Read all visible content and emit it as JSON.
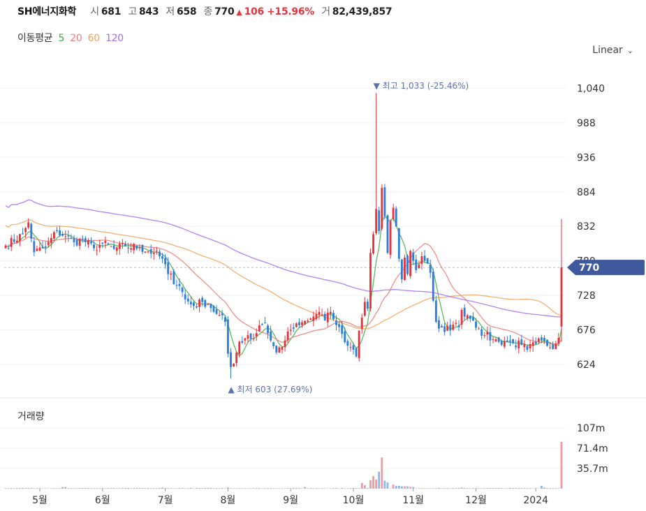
{
  "header": {
    "name": "SH에너지화학",
    "open_label": "시",
    "open": "681",
    "high_label": "고",
    "high": "843",
    "low_label": "저",
    "low": "658",
    "close_label": "종",
    "close": "770",
    "change": "106",
    "change_pct": "+15.96%",
    "volume_label": "거",
    "volume": "82,439,857"
  },
  "ma_legend": {
    "title": "이동평균",
    "items": [
      {
        "label": "5",
        "color": "#3fae3f"
      },
      {
        "label": "20",
        "color": "#f07a7a"
      },
      {
        "label": "60",
        "color": "#f0a35a"
      },
      {
        "label": "120",
        "color": "#a36df0"
      }
    ]
  },
  "scale_mode": "Linear",
  "annotations": {
    "high": {
      "label": "최고",
      "value": "1,033 (-25.46%)"
    },
    "low": {
      "label": "최저",
      "value": "603 (27.69%)"
    },
    "current": "770"
  },
  "volume_panel": {
    "title": "거래량"
  },
  "colors": {
    "up": "#e8323c",
    "down": "#2f7fd8",
    "grid": "#eef0f3",
    "current_badge": "#3f5a9c",
    "annotation": "#5a72b0"
  },
  "chart_data": {
    "type": "candlestick",
    "price_axis": {
      "ticks": [
        "1,040",
        "988",
        "936",
        "884",
        "832",
        "780",
        "728",
        "676",
        "624"
      ],
      "tick_values": [
        1040,
        988,
        936,
        884,
        832,
        780,
        728,
        676,
        624
      ],
      "range": [
        584,
        1072
      ]
    },
    "volume_axis": {
      "ticks": [
        "107m",
        "71.4m",
        "35.7m"
      ],
      "tick_values": [
        107,
        71.4,
        35.7
      ],
      "unit": "m",
      "range": [
        0,
        150
      ]
    },
    "x_labels": [
      "5월",
      "6월",
      "7월",
      "8월",
      "9월",
      "10월",
      "11월",
      "12월",
      "2024"
    ],
    "x_label_index": [
      12,
      34,
      56,
      78,
      100,
      122,
      143,
      165,
      186
    ],
    "last": {
      "open": 681,
      "high": 843,
      "low": 658,
      "close": 770,
      "volume": 82.44
    },
    "ohlc_anchors": [
      [
        0,
        803
      ],
      [
        6,
        820
      ],
      [
        8,
        838
      ],
      [
        10,
        793
      ],
      [
        14,
        800
      ],
      [
        18,
        825
      ],
      [
        21,
        817
      ],
      [
        24,
        808
      ],
      [
        27,
        812
      ],
      [
        31,
        799
      ],
      [
        34,
        806
      ],
      [
        38,
        798
      ],
      [
        42,
        802
      ],
      [
        47,
        800
      ],
      [
        52,
        792
      ],
      [
        55,
        783
      ],
      [
        57,
        760
      ],
      [
        61,
        742
      ],
      [
        63,
        722
      ],
      [
        66,
        712
      ],
      [
        69,
        718
      ],
      [
        71,
        716
      ],
      [
        74,
        700
      ],
      [
        77,
        688
      ],
      [
        78,
        640
      ],
      [
        79,
        620
      ],
      [
        80,
        625
      ],
      [
        82,
        658
      ],
      [
        85,
        668
      ],
      [
        87,
        663
      ],
      [
        89,
        683
      ],
      [
        91,
        686
      ],
      [
        93,
        660
      ],
      [
        95,
        642
      ],
      [
        98,
        660
      ],
      [
        100,
        676
      ],
      [
        103,
        683
      ],
      [
        106,
        690
      ],
      [
        108,
        696
      ],
      [
        110,
        703
      ],
      [
        112,
        690
      ],
      [
        113,
        702
      ],
      [
        115,
        692
      ],
      [
        118,
        670
      ],
      [
        120,
        652
      ],
      [
        122,
        646
      ],
      [
        123,
        636
      ],
      [
        124,
        675
      ],
      [
        126,
        718
      ],
      [
        127,
        708
      ],
      [
        128,
        792
      ],
      [
        129,
        820
      ],
      [
        130,
        858
      ],
      [
        131,
        825
      ],
      [
        132,
        890
      ],
      [
        133,
        848
      ],
      [
        134,
        792
      ],
      [
        135,
        840
      ],
      [
        136,
        860
      ],
      [
        137,
        832
      ],
      [
        138,
        783
      ],
      [
        139,
        752
      ],
      [
        140,
        785
      ],
      [
        141,
        760
      ],
      [
        142,
        795
      ],
      [
        143,
        780
      ],
      [
        144,
        766
      ],
      [
        146,
        787
      ],
      [
        148,
        776
      ],
      [
        149,
        762
      ],
      [
        150,
        720
      ],
      [
        151,
        688
      ],
      [
        152,
        678
      ],
      [
        154,
        673
      ],
      [
        157,
        684
      ],
      [
        159,
        680
      ],
      [
        160,
        706
      ],
      [
        162,
        698
      ],
      [
        164,
        690
      ],
      [
        166,
        678
      ],
      [
        168,
        668
      ],
      [
        171,
        662
      ],
      [
        173,
        658
      ],
      [
        175,
        659
      ],
      [
        178,
        656
      ],
      [
        181,
        653
      ],
      [
        183,
        646
      ],
      [
        186,
        655
      ],
      [
        188,
        660
      ],
      [
        190,
        652
      ],
      [
        193,
        655
      ],
      [
        194,
        664
      ],
      [
        195,
        681
      ]
    ],
    "high_point": {
      "value": 1033,
      "label": "1,033 (-25.46%)",
      "index": 130
    },
    "low_point": {
      "value": 603,
      "label": "603 (27.69%)",
      "index": 79
    },
    "volume_spikes": [
      [
        20,
        3
      ],
      [
        21,
        3
      ],
      [
        55,
        2
      ],
      [
        78,
        2
      ],
      [
        105,
        3
      ],
      [
        125,
        10
      ],
      [
        126,
        6
      ],
      [
        128,
        15
      ],
      [
        129,
        22
      ],
      [
        130,
        16
      ],
      [
        131,
        30
      ],
      [
        132,
        55
      ],
      [
        133,
        14
      ],
      [
        134,
        11
      ],
      [
        136,
        7
      ],
      [
        137,
        5
      ],
      [
        138,
        5
      ],
      [
        139,
        4
      ],
      [
        140,
        4
      ],
      [
        141,
        4
      ],
      [
        142,
        3
      ],
      [
        143,
        3
      ],
      [
        160,
        2
      ],
      [
        188,
        5
      ],
      [
        189,
        2
      ],
      [
        195,
        82.44
      ]
    ],
    "series": [
      {
        "name": "5",
        "period": 5,
        "color": "#3fae3f"
      },
      {
        "name": "20",
        "period": 20,
        "color": "#f07a7a"
      },
      {
        "name": "60",
        "period": 60,
        "color": "#f0a35a"
      },
      {
        "name": "120",
        "period": 120,
        "color": "#a36df0"
      }
    ]
  }
}
